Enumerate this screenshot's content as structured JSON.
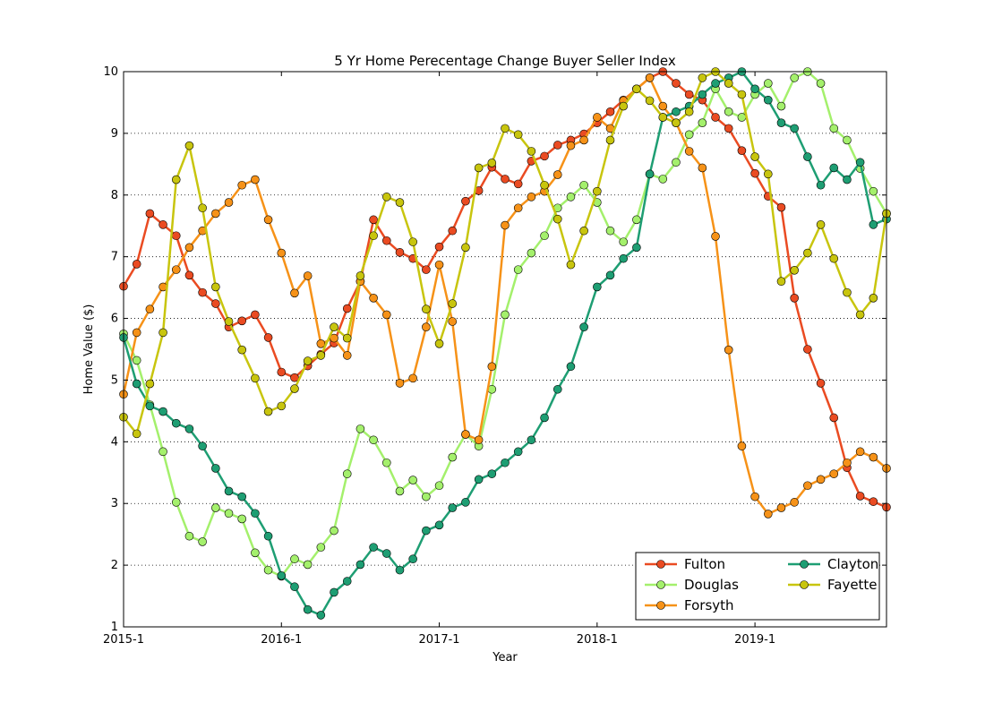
{
  "chart_data": {
    "type": "line",
    "title": "5 Yr Home Perecentage Change Buyer Seller Index",
    "xlabel": "Year",
    "ylabel": "Home Value ($)",
    "x_tick_labels": [
      "2015-1",
      "2016-1",
      "2017-1",
      "2018-1",
      "2019-1"
    ],
    "x_ticks_month_index": [
      0,
      12,
      24,
      36,
      48
    ],
    "xlim": [
      0,
      58
    ],
    "y_ticks": [
      1,
      2,
      3,
      4,
      5,
      6,
      7,
      8,
      9,
      10
    ],
    "ylim": [
      1,
      10
    ],
    "grid": "horizontal dotted",
    "legend_location": "lower right",
    "legend_columns": 2,
    "series": [
      {
        "name": "Fulton",
        "color": "#ea4b22",
        "values": [
          6.52,
          6.88,
          7.7,
          7.52,
          7.34,
          6.7,
          6.42,
          6.24,
          5.86,
          5.96,
          6.06,
          5.69,
          5.13,
          5.04,
          5.23,
          5.42,
          5.6,
          6.16,
          6.6,
          7.6,
          7.26,
          7.07,
          6.97,
          6.79,
          7.16,
          7.42,
          7.9,
          8.07,
          8.45,
          8.26,
          8.18,
          8.55,
          8.63,
          8.81,
          8.89,
          8.99,
          9.17,
          9.35,
          9.54,
          9.72,
          9.9,
          10.0,
          9.81,
          9.63,
          9.54,
          9.26,
          9.08,
          8.72,
          8.35,
          7.98,
          7.8,
          6.33,
          5.5,
          4.95,
          4.39,
          3.58,
          3.12,
          3.03,
          2.94
        ]
      },
      {
        "name": "Douglas",
        "color": "#a4f06c",
        "values": [
          5.75,
          5.32,
          4.6,
          3.84,
          3.02,
          2.47,
          2.38,
          2.93,
          2.84,
          2.75,
          2.2,
          1.92,
          1.82,
          2.1,
          2.01,
          2.29,
          2.56,
          3.48,
          4.21,
          4.03,
          3.66,
          3.2,
          3.38,
          3.11,
          3.29,
          3.75,
          4.12,
          3.93,
          4.85,
          6.06,
          6.79,
          7.06,
          7.34,
          7.79,
          7.97,
          8.16,
          7.88,
          7.42,
          7.24,
          7.6,
          8.34,
          8.26,
          8.53,
          8.98,
          9.17,
          9.72,
          9.35,
          9.26,
          9.63,
          9.81,
          9.44,
          9.9,
          10.0,
          9.81,
          9.08,
          8.89,
          8.43,
          8.06,
          7.7
        ]
      },
      {
        "name": "Forsyth",
        "color": "#f69218",
        "values": [
          4.77,
          5.77,
          6.15,
          6.51,
          6.79,
          7.15,
          7.42,
          7.7,
          7.88,
          8.16,
          8.25,
          7.6,
          7.06,
          6.41,
          6.69,
          5.59,
          5.68,
          5.4,
          6.6,
          6.33,
          6.06,
          4.95,
          5.03,
          5.86,
          6.87,
          5.95,
          4.12,
          4.03,
          5.22,
          7.51,
          7.79,
          7.97,
          8.06,
          8.33,
          8.8,
          8.89,
          9.26,
          9.08,
          9.53,
          9.72,
          9.9,
          9.44,
          9.17,
          8.71,
          8.44,
          7.33,
          5.49,
          3.93,
          3.11,
          2.83,
          2.93,
          3.02,
          3.29,
          3.39,
          3.48,
          3.66,
          3.84,
          3.75,
          3.57
        ]
      },
      {
        "name": "Clayton",
        "color": "#1e9e73",
        "values": [
          5.69,
          4.94,
          4.58,
          4.49,
          4.3,
          4.21,
          3.93,
          3.57,
          3.2,
          3.11,
          2.84,
          2.47,
          1.83,
          1.65,
          1.28,
          1.19,
          1.56,
          1.74,
          2.01,
          2.29,
          2.19,
          1.92,
          2.1,
          2.56,
          2.65,
          2.93,
          3.02,
          3.39,
          3.48,
          3.66,
          3.84,
          4.03,
          4.39,
          4.85,
          5.22,
          5.86,
          6.51,
          6.7,
          6.97,
          7.15,
          8.34,
          9.26,
          9.35,
          9.44,
          9.63,
          9.81,
          9.9,
          10.0,
          9.72,
          9.54,
          9.17,
          9.08,
          8.62,
          8.16,
          8.44,
          8.25,
          8.53,
          7.52,
          7.61
        ]
      },
      {
        "name": "Fayette",
        "color": "#c8c50e",
        "values": [
          4.4,
          4.13,
          4.94,
          5.77,
          8.25,
          8.8,
          7.79,
          6.51,
          5.95,
          5.49,
          5.03,
          4.49,
          4.58,
          4.86,
          5.31,
          5.4,
          5.86,
          5.68,
          6.69,
          7.34,
          7.97,
          7.88,
          7.24,
          6.15,
          5.59,
          6.24,
          7.15,
          8.44,
          8.52,
          9.08,
          8.98,
          8.71,
          8.16,
          7.61,
          6.87,
          7.42,
          8.06,
          8.89,
          9.44,
          9.72,
          9.53,
          9.26,
          9.17,
          9.35,
          9.9,
          10.0,
          9.81,
          9.63,
          8.62,
          8.34,
          6.6,
          6.78,
          7.06,
          7.52,
          6.97,
          6.42,
          6.06,
          6.33,
          7.7
        ]
      }
    ]
  }
}
